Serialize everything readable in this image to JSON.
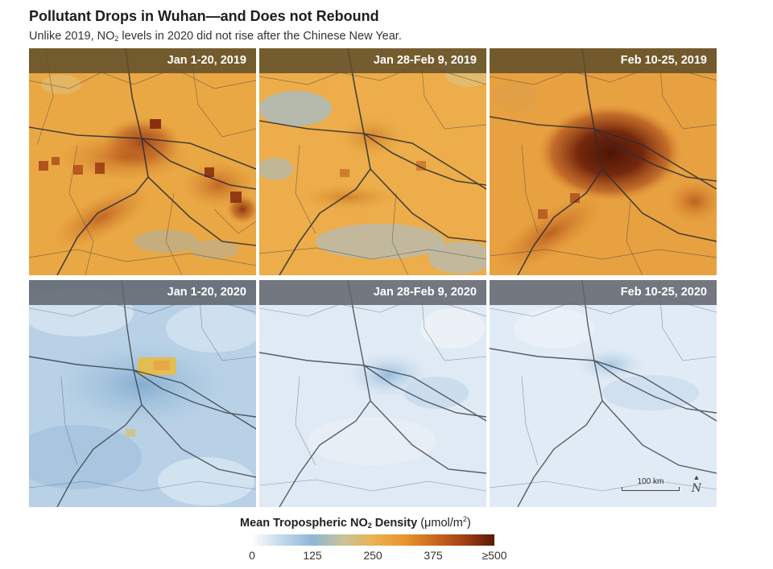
{
  "header": {
    "title": "Pollutant Drops in Wuhan—and Does not Rebound",
    "subtitle_pre": "Unlike 2019, NO",
    "subtitle_sub": "2",
    "subtitle_post": " levels in 2020 did not rise after the Chinese New Year."
  },
  "panels": [
    {
      "label": "Jan 1-20, 2019"
    },
    {
      "label": "Jan 28-Feb 9, 2019"
    },
    {
      "label": "Feb 10-25, 2019"
    },
    {
      "label": "Jan 1-20, 2020"
    },
    {
      "label": "Jan 28-Feb 9, 2020"
    },
    {
      "label": "Feb 10-25, 2020"
    }
  ],
  "map": {
    "scale_label": "100 km",
    "north_symbol": "N"
  },
  "legend": {
    "title_main_pre": "Mean Tropospheric NO",
    "title_sub": "2",
    "title_main_post": " Density",
    "units_pre": "(μmol/m",
    "units_sup": "2",
    "units_post": ")",
    "ticks": [
      "0",
      "125",
      "250",
      "375",
      "≥500"
    ]
  },
  "colors": {
    "orange": "#eaa844",
    "dark_brown": "#5a1807",
    "light_blue": "#dce9f3",
    "mid_blue": "#8fb6d9"
  }
}
